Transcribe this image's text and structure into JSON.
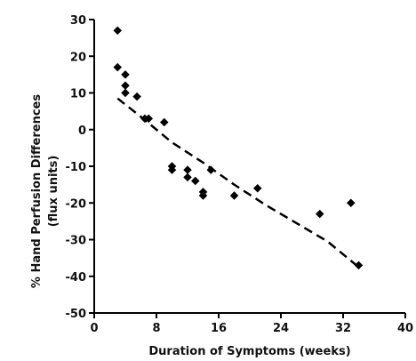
{
  "chart_data": {
    "type": "scatter",
    "title": "",
    "xlabel": "Duration of Symptoms (weeks)",
    "ylabel_line1": "% Hand Perfusion Differences",
    "ylabel_line2": "(flux units)",
    "xlim": [
      0,
      40
    ],
    "ylim": [
      -50,
      30
    ],
    "xticks": [
      0,
      8,
      16,
      24,
      32,
      40
    ],
    "yticks": [
      30,
      20,
      10,
      0,
      -10,
      -20,
      -30,
      -40,
      -50
    ],
    "grid": false,
    "legend": "none",
    "marker_color": "#000000",
    "points": [
      {
        "x": 3.0,
        "y": 27
      },
      {
        "x": 3.0,
        "y": 17
      },
      {
        "x": 4.0,
        "y": 15
      },
      {
        "x": 4.0,
        "y": 12
      },
      {
        "x": 4.0,
        "y": 10
      },
      {
        "x": 5.5,
        "y": 9
      },
      {
        "x": 6.5,
        "y": 3
      },
      {
        "x": 7.0,
        "y": 3
      },
      {
        "x": 9.0,
        "y": 2
      },
      {
        "x": 10.0,
        "y": -10
      },
      {
        "x": 10.0,
        "y": -11
      },
      {
        "x": 12.0,
        "y": -11
      },
      {
        "x": 12.0,
        "y": -13
      },
      {
        "x": 13.0,
        "y": -14
      },
      {
        "x": 14.0,
        "y": -17
      },
      {
        "x": 14.0,
        "y": -18
      },
      {
        "x": 15.0,
        "y": -11
      },
      {
        "x": 18.0,
        "y": -18
      },
      {
        "x": 21.0,
        "y": -16
      },
      {
        "x": 29.0,
        "y": -23
      },
      {
        "x": 33.0,
        "y": -20
      },
      {
        "x": 34.0,
        "y": -37
      }
    ],
    "trendline": {
      "style": "dashed",
      "x": [
        3,
        6,
        10,
        14,
        18,
        22,
        26,
        30,
        34
      ],
      "y": [
        8.5,
        3.5,
        -3.5,
        -9,
        -15,
        -20.5,
        -25.5,
        -30.5,
        -37.5
      ]
    }
  }
}
